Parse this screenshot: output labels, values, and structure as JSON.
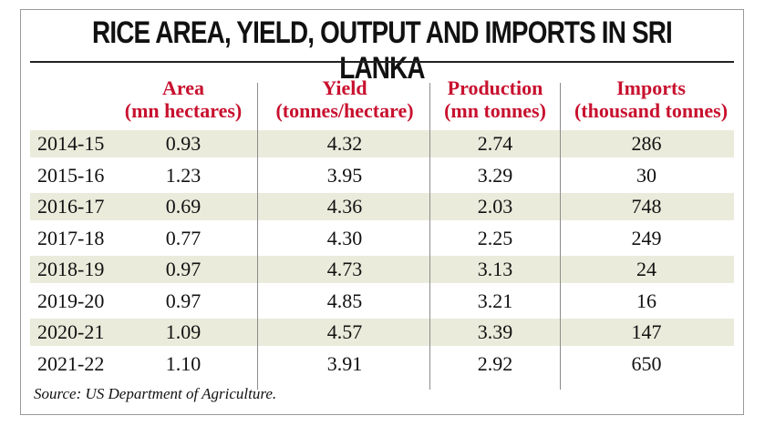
{
  "chart_data": {
    "type": "table",
    "title": "RICE AREA, YIELD, OUTPUT AND IMPORTS IN SRI LANKA",
    "columns": [
      {
        "name": "Area",
        "unit": "(mn hectares)"
      },
      {
        "name": "Yield",
        "unit": "(tonnes/hectare)"
      },
      {
        "name": "Production",
        "unit": "(mn tonnes)"
      },
      {
        "name": "Imports",
        "unit": "(thousand tonnes)"
      }
    ],
    "rows": [
      {
        "year": "2014-15",
        "values": [
          "0.93",
          "4.32",
          "2.74",
          "286"
        ]
      },
      {
        "year": "2015-16",
        "values": [
          "1.23",
          "3.95",
          "3.29",
          "30"
        ]
      },
      {
        "year": "2016-17",
        "values": [
          "0.69",
          "4.36",
          "2.03",
          "748"
        ]
      },
      {
        "year": "2017-18",
        "values": [
          "0.77",
          "4.30",
          "2.25",
          "249"
        ]
      },
      {
        "year": "2018-19",
        "values": [
          "0.97",
          "4.73",
          "3.13",
          "24"
        ]
      },
      {
        "year": "2019-20",
        "values": [
          "0.97",
          "4.85",
          "3.21",
          "16"
        ]
      },
      {
        "year": "2020-21",
        "values": [
          "1.09",
          "4.57",
          "3.39",
          "147"
        ]
      },
      {
        "year": "2021-22",
        "values": [
          "1.10",
          "3.91",
          "2.92",
          "650"
        ]
      }
    ],
    "source": "Source: US Department of Agriculture.",
    "colors": {
      "header": "#c8102e",
      "shaded_row": "#ebebdc",
      "text": "#111111"
    }
  }
}
